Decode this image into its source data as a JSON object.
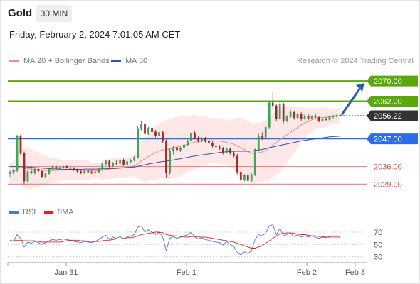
{
  "header": {
    "title": "Gold",
    "timeframe": "30 MIN",
    "datetime": "Friday, February 2, 2024 7:01:05 AM CET"
  },
  "legend": {
    "ma20": "MA 20 + Bollinger Bands",
    "ma50": "MA 50",
    "credit": "Research © 2024 Trading Central"
  },
  "rsi_legend": {
    "rsi": "RSI",
    "ma": "9MA"
  },
  "colors": {
    "resistance": "#5aa80a",
    "support": "#f08a8a",
    "ma20": "#f08a8a",
    "ma50": "#33539e",
    "pivot": "#2c6bea",
    "current": "#333333",
    "arrow": "#2a5fa8",
    "band_fill": "#fde4e4",
    "rsi": "#4a78d0",
    "rsi_ma": "#e02020"
  },
  "chart_data": [
    {
      "type": "candlestick",
      "ylim": [
        2026,
        2074
      ],
      "x_labels": [
        "Jan 31",
        "Feb 1",
        "Feb 2",
        "Feb 8"
      ],
      "levels": [
        {
          "value": 2070.0,
          "label": "2070.00",
          "kind": "resistance"
        },
        {
          "value": 2062.0,
          "label": "2062.00",
          "kind": "resistance"
        },
        {
          "value": 2056.22,
          "label": "2056.22",
          "kind": "current"
        },
        {
          "value": 2047.0,
          "label": "2047.00",
          "kind": "pivot"
        },
        {
          "value": 2036.0,
          "label": "2036.00",
          "kind": "support"
        },
        {
          "value": 2029.0,
          "label": "2029.00",
          "kind": "support"
        }
      ],
      "ohlc": [
        [
          2033.2,
          2034.5,
          2031.8,
          2033.8
        ],
        [
          2033.8,
          2035.0,
          2032.6,
          2034.4
        ],
        [
          2034.4,
          2048.6,
          2033.8,
          2048.0
        ],
        [
          2048.0,
          2048.8,
          2040.4,
          2041.2
        ],
        [
          2041.2,
          2042.0,
          2029.0,
          2030.2
        ],
        [
          2030.2,
          2034.6,
          2029.4,
          2034.0
        ],
        [
          2034.0,
          2036.2,
          2032.8,
          2033.4
        ],
        [
          2033.4,
          2035.6,
          2032.6,
          2035.0
        ],
        [
          2035.0,
          2036.0,
          2033.8,
          2034.2
        ],
        [
          2034.2,
          2034.8,
          2031.6,
          2032.0
        ],
        [
          2032.0,
          2033.6,
          2031.2,
          2033.2
        ],
        [
          2033.2,
          2035.4,
          2032.8,
          2035.0
        ],
        [
          2035.0,
          2036.4,
          2034.6,
          2035.8
        ],
        [
          2035.8,
          2036.6,
          2034.8,
          2035.2
        ],
        [
          2035.2,
          2036.0,
          2034.6,
          2035.6
        ],
        [
          2035.6,
          2036.6,
          2035.0,
          2036.0
        ],
        [
          2036.0,
          2036.6,
          2035.2,
          2035.6
        ],
        [
          2035.6,
          2036.2,
          2034.8,
          2035.2
        ],
        [
          2035.2,
          2035.8,
          2034.2,
          2034.6
        ],
        [
          2034.6,
          2035.2,
          2033.6,
          2034.0
        ],
        [
          2034.0,
          2034.8,
          2033.0,
          2033.6
        ],
        [
          2033.6,
          2034.6,
          2033.0,
          2034.2
        ],
        [
          2034.2,
          2034.8,
          2033.4,
          2033.8
        ],
        [
          2033.8,
          2034.4,
          2033.0,
          2033.4
        ],
        [
          2033.4,
          2034.2,
          2032.8,
          2033.8
        ],
        [
          2033.8,
          2035.6,
          2033.4,
          2035.2
        ],
        [
          2035.2,
          2037.4,
          2034.8,
          2037.0
        ],
        [
          2037.0,
          2038.8,
          2036.4,
          2038.2
        ],
        [
          2038.2,
          2038.6,
          2035.6,
          2036.2
        ],
        [
          2036.2,
          2037.8,
          2035.8,
          2037.4
        ],
        [
          2037.4,
          2038.4,
          2036.6,
          2037.2
        ],
        [
          2037.2,
          2038.8,
          2036.8,
          2038.4
        ],
        [
          2038.4,
          2039.2,
          2036.2,
          2036.8
        ],
        [
          2036.8,
          2038.4,
          2036.4,
          2038.0
        ],
        [
          2038.0,
          2039.0,
          2037.2,
          2038.6
        ],
        [
          2038.6,
          2040.2,
          2038.0,
          2039.6
        ],
        [
          2039.6,
          2052.0,
          2039.2,
          2051.2
        ],
        [
          2051.2,
          2054.0,
          2050.4,
          2053.0
        ],
        [
          2053.0,
          2053.6,
          2048.2,
          2049.0
        ],
        [
          2049.0,
          2051.8,
          2048.6,
          2051.4
        ],
        [
          2051.4,
          2052.4,
          2049.4,
          2049.8
        ],
        [
          2049.8,
          2050.6,
          2047.6,
          2048.4
        ],
        [
          2048.4,
          2050.2,
          2047.4,
          2049.6
        ],
        [
          2049.6,
          2050.2,
          2045.4,
          2046.2
        ],
        [
          2046.2,
          2046.8,
          2031.4,
          2033.4
        ],
        [
          2033.4,
          2043.2,
          2032.8,
          2042.4
        ],
        [
          2042.4,
          2044.2,
          2040.8,
          2043.6
        ],
        [
          2043.6,
          2044.8,
          2042.0,
          2042.6
        ],
        [
          2042.6,
          2044.0,
          2041.8,
          2043.4
        ],
        [
          2043.4,
          2045.2,
          2042.8,
          2044.6
        ],
        [
          2044.6,
          2046.8,
          2044.2,
          2046.2
        ],
        [
          2046.2,
          2049.8,
          2045.8,
          2049.2
        ],
        [
          2049.2,
          2050.0,
          2046.8,
          2047.4
        ],
        [
          2047.4,
          2048.2,
          2045.6,
          2046.4
        ],
        [
          2046.4,
          2047.6,
          2045.8,
          2047.0
        ],
        [
          2047.0,
          2047.8,
          2045.6,
          2046.0
        ],
        [
          2046.0,
          2046.8,
          2044.8,
          2045.4
        ],
        [
          2045.4,
          2046.0,
          2043.6,
          2044.2
        ],
        [
          2044.2,
          2045.0,
          2043.2,
          2043.8
        ],
        [
          2043.8,
          2044.6,
          2042.6,
          2043.2
        ],
        [
          2043.2,
          2043.8,
          2040.8,
          2041.6
        ],
        [
          2041.6,
          2043.6,
          2041.2,
          2043.0
        ],
        [
          2043.0,
          2043.6,
          2040.8,
          2041.4
        ],
        [
          2041.4,
          2042.2,
          2039.6,
          2040.2
        ],
        [
          2040.2,
          2041.0,
          2033.0,
          2033.8
        ],
        [
          2033.8,
          2034.4,
          2029.4,
          2030.6
        ],
        [
          2030.6,
          2033.0,
          2030.0,
          2032.4
        ],
        [
          2032.4,
          2033.2,
          2029.8,
          2030.4
        ],
        [
          2030.4,
          2033.4,
          2029.6,
          2032.8
        ],
        [
          2032.8,
          2043.4,
          2032.2,
          2042.8
        ],
        [
          2042.8,
          2049.0,
          2042.0,
          2048.2
        ],
        [
          2048.2,
          2049.6,
          2046.6,
          2047.6
        ],
        [
          2047.6,
          2052.2,
          2047.0,
          2051.6
        ],
        [
          2051.6,
          2062.2,
          2051.0,
          2061.4
        ],
        [
          2061.4,
          2066.0,
          2059.0,
          2060.2
        ],
        [
          2060.2,
          2061.0,
          2054.0,
          2055.0
        ],
        [
          2055.0,
          2061.8,
          2054.4,
          2060.8
        ],
        [
          2060.8,
          2061.4,
          2053.2,
          2054.2
        ],
        [
          2054.2,
          2056.4,
          2053.6,
          2055.8
        ],
        [
          2055.8,
          2058.6,
          2055.4,
          2057.6
        ],
        [
          2057.6,
          2058.2,
          2054.6,
          2055.4
        ],
        [
          2055.4,
          2057.4,
          2054.8,
          2056.8
        ],
        [
          2056.8,
          2057.6,
          2054.2,
          2055.0
        ],
        [
          2055.0,
          2056.8,
          2054.6,
          2056.2
        ],
        [
          2056.2,
          2057.0,
          2054.4,
          2055.2
        ],
        [
          2055.2,
          2056.4,
          2054.8,
          2056.0
        ],
        [
          2056.0,
          2057.2,
          2055.2,
          2055.6
        ],
        [
          2055.6,
          2056.2,
          2053.6,
          2054.2
        ],
        [
          2054.2,
          2055.6,
          2053.8,
          2055.0
        ],
        [
          2055.0,
          2055.6,
          2054.0,
          2054.6
        ],
        [
          2054.6,
          2056.4,
          2054.2,
          2055.8
        ],
        [
          2055.8,
          2056.6,
          2055.0,
          2056.0
        ],
        [
          2056.0,
          2056.8,
          2055.4,
          2056.4
        ],
        [
          2056.4,
          2057.0,
          2055.8,
          2056.22
        ]
      ],
      "ma20": [
        2033.2,
        2033.6,
        2035.4,
        2036.0,
        2035.4,
        2035.2,
        2035.0,
        2034.9,
        2034.8,
        2034.6,
        2034.4,
        2034.4,
        2034.4,
        2034.5,
        2034.5,
        2034.6,
        2034.7,
        2034.7,
        2034.6,
        2034.6,
        2034.5,
        2034.5,
        2034.4,
        2034.3,
        2034.2,
        2034.3,
        2034.5,
        2034.8,
        2035.0,
        2035.2,
        2035.3,
        2035.5,
        2035.6,
        2035.8,
        2036.0,
        2036.3,
        2037.2,
        2038.3,
        2039.1,
        2040.0,
        2040.8,
        2041.5,
        2042.2,
        2042.7,
        2042.6,
        2043.0,
        2043.4,
        2043.8,
        2044.1,
        2044.5,
        2044.9,
        2045.4,
        2045.7,
        2045.9,
        2046.1,
        2046.2,
        2046.3,
        2046.3,
        2046.2,
        2046.1,
        2045.9,
        2045.6,
        2045.3,
        2044.9,
        2044.3,
        2043.5,
        2042.8,
        2042.0,
        2041.3,
        2041.2,
        2041.5,
        2041.8,
        2042.4,
        2043.4,
        2044.6,
        2045.6,
        2046.6,
        2047.6,
        2048.6,
        2049.6,
        2050.6,
        2051.6,
        2052.6,
        2053.4,
        2054.0,
        2054.6,
        2055.0,
        2055.3,
        2055.5,
        2055.6,
        2055.8,
        2055.9,
        2056.0,
        2056.1
      ],
      "ma50": [
        2036.0,
        2036.0,
        2036.0,
        2036.0,
        2035.9,
        2035.8,
        2035.7,
        2035.6,
        2035.5,
        2035.4,
        2035.3,
        2035.2,
        2035.1,
        2035.0,
        2035.0,
        2034.9,
        2034.9,
        2034.9,
        2034.9,
        2034.9,
        2034.9,
        2035.0,
        2035.0,
        2035.0,
        2035.0,
        2035.0,
        2035.1,
        2035.1,
        2035.2,
        2035.2,
        2035.3,
        2035.4,
        2035.5,
        2035.6,
        2035.7,
        2035.8,
        2036.1,
        2036.4,
        2036.7,
        2037.0,
        2037.3,
        2037.5,
        2037.8,
        2038.0,
        2038.1,
        2038.4,
        2038.6,
        2038.9,
        2039.1,
        2039.4,
        2039.6,
        2039.9,
        2040.2,
        2040.4,
        2040.6,
        2040.8,
        2041.0,
        2041.2,
        2041.4,
        2041.6,
        2041.8,
        2041.9,
        2042.0,
        2042.1,
        2042.1,
        2042.1,
        2042.1,
        2042.1,
        2042.2,
        2042.4,
        2042.6,
        2042.8,
        2043.1,
        2043.5,
        2043.8,
        2044.1,
        2044.4,
        2044.7,
        2045.0,
        2045.3,
        2045.6,
        2045.9,
        2046.2,
        2046.4,
        2046.6,
        2046.8,
        2047.0,
        2047.2,
        2047.4,
        2047.6,
        2047.8,
        2047.9,
        2048.0,
        2048.1
      ],
      "bb_width": [
        4,
        4,
        6,
        7,
        8,
        8,
        8,
        7,
        7,
        6,
        6,
        5,
        5,
        5,
        4,
        4,
        4,
        4,
        4,
        4,
        4,
        4,
        4,
        3,
        3,
        3,
        4,
        4,
        4,
        4,
        4,
        4,
        4,
        4,
        4,
        4,
        6,
        8,
        9,
        10,
        10,
        11,
        11,
        11,
        12,
        12,
        12,
        12,
        12,
        12,
        11,
        11,
        11,
        10,
        10,
        10,
        9,
        9,
        9,
        9,
        9,
        9,
        9,
        10,
        11,
        12,
        12,
        12,
        12,
        12,
        12,
        12,
        12,
        13,
        13,
        13,
        13,
        12,
        11,
        10,
        9,
        8,
        7,
        6,
        5,
        5,
        4,
        4,
        4,
        4,
        3,
        3,
        3,
        3
      ]
    },
    {
      "type": "line",
      "ylim": [
        25,
        85
      ],
      "ticks": [
        70,
        50,
        30
      ],
      "series": [
        {
          "name": "RSI",
          "values": [
            57,
            55,
            66,
            60,
            46,
            54,
            52,
            55,
            53,
            50,
            53,
            56,
            58,
            57,
            58,
            59,
            58,
            57,
            55,
            54,
            53,
            55,
            54,
            53,
            55,
            58,
            62,
            65,
            58,
            62,
            60,
            63,
            59,
            62,
            64,
            66,
            78,
            80,
            70,
            74,
            70,
            66,
            70,
            62,
            40,
            60,
            63,
            60,
            62,
            64,
            66,
            70,
            62,
            59,
            61,
            58,
            57,
            55,
            54,
            53,
            49,
            55,
            50,
            47,
            37,
            33,
            38,
            35,
            40,
            58,
            66,
            64,
            68,
            80,
            82,
            66,
            76,
            64,
            66,
            68,
            63,
            66,
            62,
            64,
            62,
            64,
            62,
            60,
            62,
            61,
            63,
            64,
            64,
            63
          ]
        },
        {
          "name": "9MA",
          "values": [
            56,
            56,
            57,
            57,
            56,
            56,
            56,
            56,
            55,
            54,
            54,
            54,
            54,
            54,
            54,
            55,
            56,
            57,
            57,
            57,
            56,
            56,
            55,
            55,
            55,
            55,
            56,
            57,
            57,
            58,
            59,
            59,
            60,
            61,
            61,
            62,
            64,
            66,
            67,
            68,
            69,
            70,
            70,
            69,
            66,
            65,
            64,
            64,
            63,
            62,
            62,
            63,
            63,
            62,
            62,
            62,
            61,
            60,
            59,
            58,
            57,
            56,
            55,
            54,
            52,
            50,
            48,
            46,
            44,
            44,
            46,
            48,
            52,
            56,
            60,
            64,
            67,
            68,
            69,
            69,
            68,
            67,
            66,
            66,
            65,
            64,
            64,
            63,
            63,
            62,
            62,
            62,
            62,
            62
          ]
        }
      ]
    }
  ]
}
